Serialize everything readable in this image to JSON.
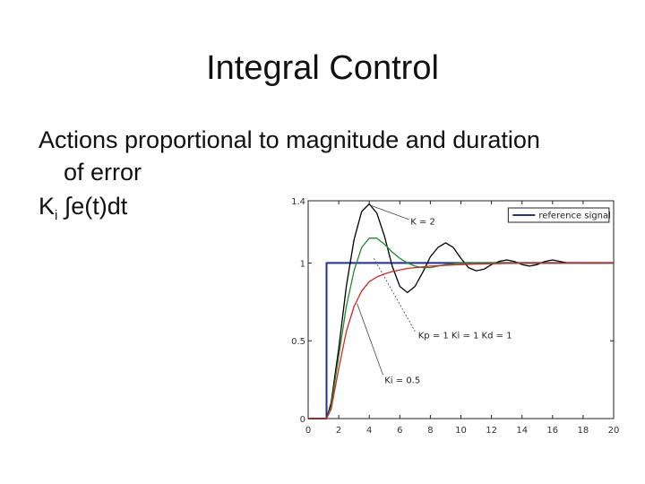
{
  "slide": {
    "title": "Integral Control",
    "line1": "Actions proportional to magnitude and duration",
    "line2": "of error",
    "formula_k": "K",
    "formula_sub": "i",
    "formula_rest": " ∫e(t)dt"
  },
  "chart_data": {
    "type": "line",
    "title": "",
    "xlabel": "",
    "ylabel": "",
    "xlim": [
      0,
      20
    ],
    "ylim": [
      0,
      1.4
    ],
    "xticks": [
      0,
      2,
      4,
      6,
      8,
      10,
      12,
      14,
      16,
      18,
      20
    ],
    "xtick_labels": [
      "0",
      "2",
      "4",
      "6",
      "8",
      "10",
      "12",
      "14",
      "16",
      "18",
      "20"
    ],
    "yticks": [
      0,
      0.5,
      1,
      1.4
    ],
    "ytick_labels": [
      "0",
      "0.5",
      "1",
      "1.4"
    ],
    "grid": false,
    "legend": {
      "position": "top-right",
      "entries": [
        "reference signal"
      ]
    },
    "series": [
      {
        "name": "reference signal",
        "color": "#1f2f9e",
        "x": [
          0,
          1.2,
          1.2,
          20
        ],
        "y": [
          0,
          0,
          1,
          1
        ]
      },
      {
        "name": "K = 2",
        "color": "#000000",
        "x": [
          0,
          1.2,
          1.5,
          2.0,
          2.5,
          3.0,
          3.5,
          4.0,
          4.5,
          5.0,
          5.5,
          6.0,
          6.5,
          7.0,
          7.5,
          8.0,
          8.5,
          9.0,
          9.5,
          10.0,
          10.5,
          11.0,
          11.5,
          12.0,
          12.5,
          13.0,
          13.5,
          14.0,
          14.5,
          15.0,
          15.5,
          16.0,
          16.5,
          17.0,
          17.5,
          18.0,
          19.0,
          20.0
        ],
        "y": [
          0,
          0,
          0.1,
          0.45,
          0.85,
          1.15,
          1.33,
          1.38,
          1.32,
          1.17,
          0.98,
          0.85,
          0.81,
          0.85,
          0.94,
          1.04,
          1.1,
          1.13,
          1.1,
          1.03,
          0.97,
          0.95,
          0.96,
          0.99,
          1.01,
          1.02,
          1.01,
          0.99,
          0.98,
          0.99,
          1.01,
          1.02,
          1.01,
          1.0,
          1.0,
          1.0,
          1.0,
          1.0
        ]
      },
      {
        "name": "Kp = 1 Ki = 1 Kd = 1",
        "color": "#1f8a2b",
        "x": [
          0,
          1.2,
          1.5,
          2.0,
          2.5,
          3.0,
          3.5,
          4.0,
          4.5,
          5.0,
          5.5,
          6.0,
          6.5,
          7.0,
          7.5,
          8.0,
          8.5,
          9.0,
          10.0,
          11.0,
          12.0,
          14.0,
          16.0,
          18.0,
          20.0
        ],
        "y": [
          0,
          0,
          0.08,
          0.4,
          0.72,
          0.95,
          1.1,
          1.16,
          1.16,
          1.12,
          1.07,
          1.03,
          1.0,
          0.98,
          0.97,
          0.97,
          0.98,
          0.99,
          1.0,
          1.0,
          1.0,
          1.0,
          1.0,
          1.0,
          1.0
        ]
      },
      {
        "name": "Ki = 0.5",
        "color": "#d7261c",
        "x": [
          0,
          1.2,
          1.5,
          2.0,
          2.5,
          3.0,
          3.5,
          4.0,
          4.5,
          5.0,
          5.5,
          6.0,
          6.5,
          7.0,
          7.5,
          8.0,
          9.0,
          10.0,
          11.0,
          12.0,
          13.0,
          14.0,
          16.0,
          18.0,
          20.0
        ],
        "y": [
          0,
          0,
          0.06,
          0.32,
          0.56,
          0.72,
          0.82,
          0.88,
          0.91,
          0.93,
          0.945,
          0.955,
          0.965,
          0.97,
          0.975,
          0.98,
          0.985,
          0.99,
          0.993,
          0.995,
          0.997,
          0.998,
          0.999,
          1.0,
          1.0
        ]
      }
    ],
    "annotations": [
      {
        "text": "K = 2"
      },
      {
        "text": "Kp = 1 Ki = 1 Kd = 1"
      },
      {
        "text": "Ki = 0.5"
      }
    ]
  }
}
